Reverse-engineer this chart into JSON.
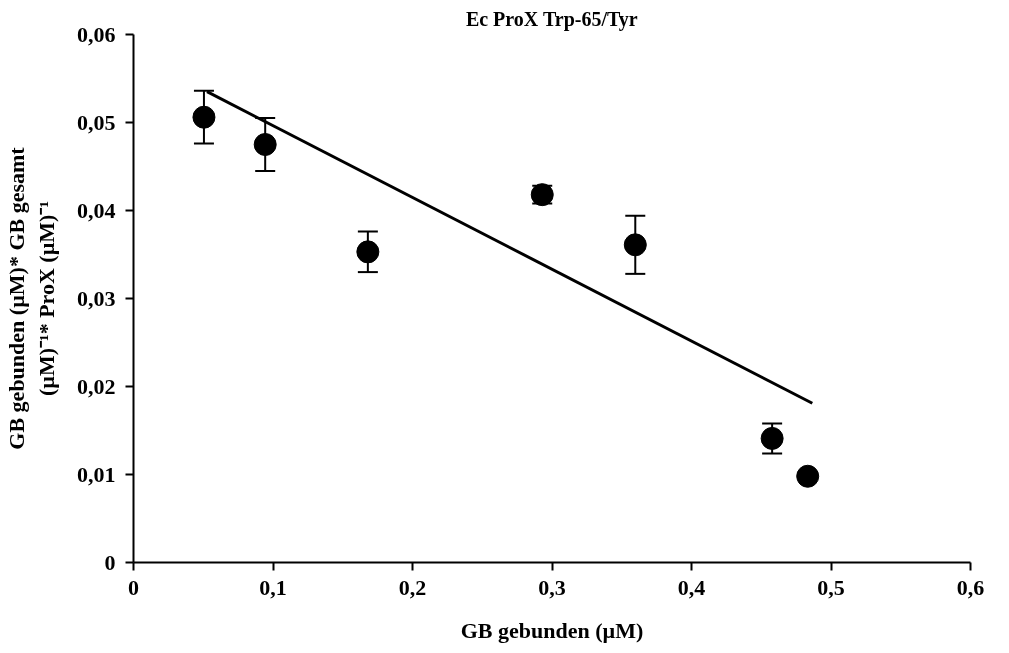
{
  "chart_data": {
    "type": "scatter",
    "title": "Ec ProX Trp-65/Tyr",
    "xlabel": "GB gebunden (µM)",
    "ylabel": "GB gebunden (µM)* GB gesamt\n(µM)⁻¹* ProX (µM)⁻¹",
    "xlim": [
      0,
      0.6
    ],
    "ylim": [
      0,
      0.06
    ],
    "xticks": [
      {
        "value": 0,
        "label": "0"
      },
      {
        "value": 0.1,
        "label": "0,1"
      },
      {
        "value": 0.2,
        "label": "0,2"
      },
      {
        "value": 0.3,
        "label": "0,3"
      },
      {
        "value": 0.4,
        "label": "0,4"
      },
      {
        "value": 0.5,
        "label": "0,5"
      },
      {
        "value": 0.6,
        "label": "0,6"
      }
    ],
    "yticks": [
      {
        "value": 0,
        "label": "0"
      },
      {
        "value": 0.01,
        "label": "0,01"
      },
      {
        "value": 0.02,
        "label": "0,02"
      },
      {
        "value": 0.03,
        "label": "0,03"
      },
      {
        "value": 0.04,
        "label": "0,04"
      },
      {
        "value": 0.05,
        "label": "0,05"
      },
      {
        "value": 0.06,
        "label": "0,06"
      }
    ],
    "grid": false,
    "series": [
      {
        "marker": "circle",
        "color": "#000000",
        "x": [
          0.0505,
          0.0944,
          0.168,
          0.293,
          0.3597,
          0.4578,
          0.4833
        ],
        "values": [
          0.0506,
          0.0475,
          0.0353,
          0.0418,
          0.0361,
          0.0141,
          0.0098
        ],
        "errors": [
          0.003,
          0.003,
          0.0023,
          0.001,
          0.0033,
          0.0017,
          null
        ]
      },
      {
        "type": "line",
        "color": "#000000",
        "x": [
          0.0527,
          0.4866
        ],
        "values": [
          0.0535,
          0.0181
        ]
      }
    ]
  }
}
